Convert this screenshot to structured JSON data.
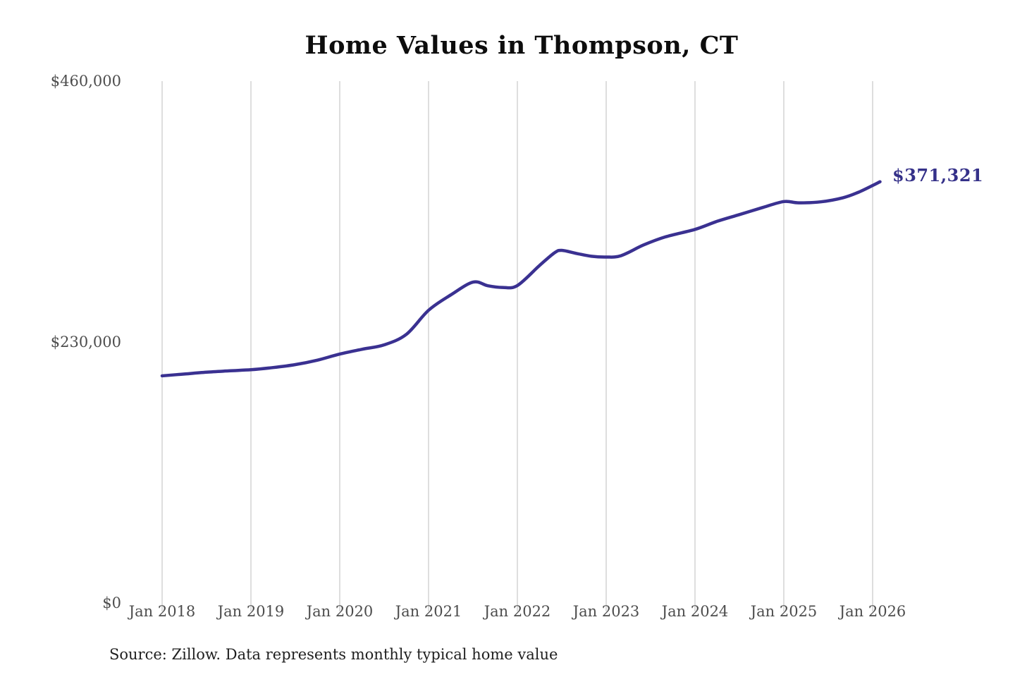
{
  "chart_data": {
    "type": "line",
    "title": "Home Values in Thompson, CT",
    "source_note": "Source: Zillow. Data represents monthly typical home value",
    "series_name": "Monthly typical home value",
    "end_label": "$371,321",
    "end_value": 371321,
    "line_color": "#3a3191",
    "grid_color": "#cccccc",
    "legend": "none",
    "grid": "vertical-only",
    "ylim": [
      0,
      460000
    ],
    "y_ticks": [
      {
        "label": "$460,000",
        "value": 460000
      },
      {
        "label": "$230,000",
        "value": 230000
      },
      {
        "label": "$0",
        "value": 0
      }
    ],
    "x_ticks": [
      "Jan 2018",
      "Jan 2019",
      "Jan 2020",
      "Jan 2021",
      "Jan 2022",
      "Jan 2023",
      "Jan 2024",
      "Jan 2025",
      "Jan 2026"
    ],
    "points": [
      {
        "date": "Jan 2018",
        "value": 200200
      },
      {
        "date": "Apr 2018",
        "value": 201800
      },
      {
        "date": "Jul 2018",
        "value": 203400
      },
      {
        "date": "Oct 2018",
        "value": 204600
      },
      {
        "date": "Jan 2019",
        "value": 205600
      },
      {
        "date": "Apr 2019",
        "value": 207500
      },
      {
        "date": "Jul 2019",
        "value": 210100
      },
      {
        "date": "Oct 2019",
        "value": 214000
      },
      {
        "date": "Jan 2020",
        "value": 219400
      },
      {
        "date": "Apr 2020",
        "value": 223600
      },
      {
        "date": "Jul 2020",
        "value": 227500
      },
      {
        "date": "Oct 2020",
        "value": 236800
      },
      {
        "date": "Jan 2021",
        "value": 258000
      },
      {
        "date": "Apr 2021",
        "value": 271500
      },
      {
        "date": "Jul 2021",
        "value": 282800
      },
      {
        "date": "Sep 2021",
        "value": 279600
      },
      {
        "date": "Nov 2021",
        "value": 278100
      },
      {
        "date": "Jan 2022",
        "value": 279800
      },
      {
        "date": "Apr 2022",
        "value": 297500
      },
      {
        "date": "Jun 2022",
        "value": 308600
      },
      {
        "date": "Jul 2022",
        "value": 310800
      },
      {
        "date": "Sep 2022",
        "value": 308100
      },
      {
        "date": "Nov 2022",
        "value": 305600
      },
      {
        "date": "Jan 2023",
        "value": 304900
      },
      {
        "date": "Mar 2023",
        "value": 306100
      },
      {
        "date": "Jun 2023",
        "value": 315400
      },
      {
        "date": "Sep 2023",
        "value": 322700
      },
      {
        "date": "Jan 2024",
        "value": 329300
      },
      {
        "date": "Apr 2024",
        "value": 336400
      },
      {
        "date": "Jul 2024",
        "value": 342300
      },
      {
        "date": "Oct 2024",
        "value": 348300
      },
      {
        "date": "Jan 2025",
        "value": 353800
      },
      {
        "date": "Mar 2025",
        "value": 352700
      },
      {
        "date": "Jun 2025",
        "value": 353600
      },
      {
        "date": "Sep 2025",
        "value": 357200
      },
      {
        "date": "Nov 2025",
        "value": 361800
      },
      {
        "date": "Jan 2026",
        "value": 368000
      },
      {
        "date": "Feb 2026",
        "value": 371321
      }
    ]
  }
}
